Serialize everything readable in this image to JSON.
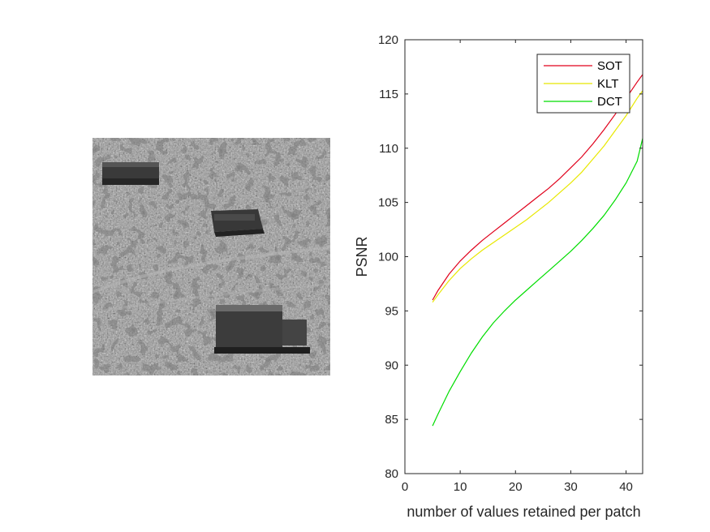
{
  "chart_data": {
    "type": "line",
    "xlabel": "number of values retained per patch",
    "ylabel": "PSNR",
    "xlim": [
      0,
      43
    ],
    "ylim": [
      80,
      120
    ],
    "xticks": [
      0,
      10,
      20,
      30,
      40
    ],
    "yticks": [
      80,
      85,
      90,
      95,
      100,
      105,
      110,
      115,
      120
    ],
    "grid": false,
    "legend_position": "top-right",
    "series": [
      {
        "name": "SOT",
        "color": "#e0001b",
        "x": [
          5,
          6,
          8,
          10,
          12,
          14,
          16,
          18,
          20,
          22,
          24,
          26,
          28,
          30,
          32,
          34,
          36,
          38,
          40,
          42,
          43
        ],
        "y": [
          96.0,
          96.9,
          98.4,
          99.6,
          100.6,
          101.5,
          102.3,
          103.1,
          103.9,
          104.7,
          105.5,
          106.3,
          107.2,
          108.2,
          109.2,
          110.4,
          111.7,
          113.1,
          114.6,
          116.1,
          116.8
        ]
      },
      {
        "name": "KLT",
        "color": "#e8e800",
        "x": [
          5,
          6,
          8,
          10,
          12,
          14,
          16,
          18,
          20,
          22,
          24,
          26,
          28,
          30,
          32,
          34,
          36,
          38,
          40,
          42,
          43
        ],
        "y": [
          95.8,
          96.5,
          97.8,
          98.9,
          99.8,
          100.6,
          101.3,
          102.0,
          102.7,
          103.4,
          104.2,
          105.0,
          105.9,
          106.8,
          107.8,
          109.0,
          110.2,
          111.6,
          113.0,
          114.6,
          115.3
        ]
      },
      {
        "name": "DCT",
        "color": "#00dd00",
        "x": [
          5,
          6,
          8,
          10,
          12,
          14,
          16,
          18,
          20,
          22,
          24,
          26,
          28,
          30,
          32,
          34,
          36,
          38,
          40,
          42,
          43
        ],
        "y": [
          84.4,
          85.5,
          87.6,
          89.4,
          91.1,
          92.6,
          93.9,
          95.0,
          96.0,
          96.9,
          97.8,
          98.7,
          99.6,
          100.5,
          101.5,
          102.6,
          103.8,
          105.2,
          106.8,
          108.8,
          110.9
        ]
      }
    ]
  }
}
